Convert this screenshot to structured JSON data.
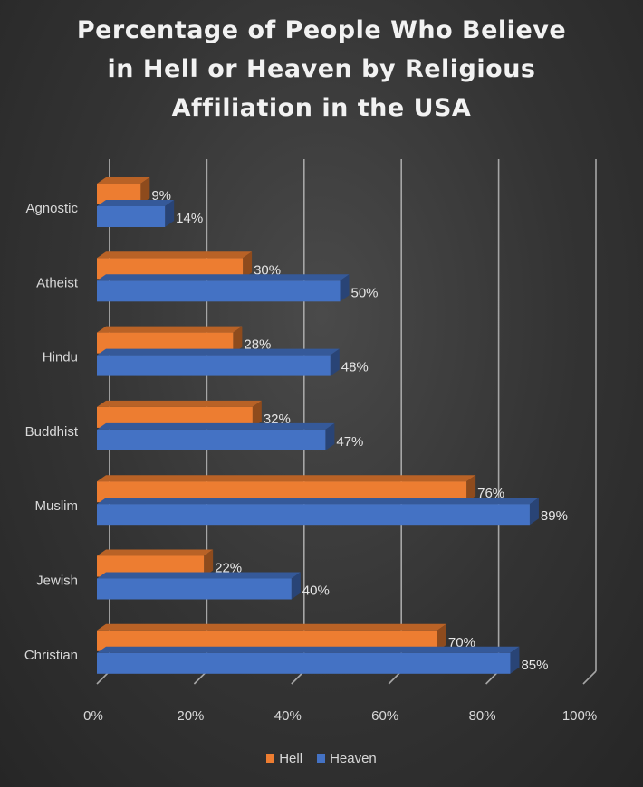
{
  "chart_data": {
    "type": "bar",
    "orientation": "horizontal",
    "title": "Percentage of People Who Believe\nin Hell or Heaven by Religious\nAffiliation in the USA",
    "categories": [
      "Agnostic",
      "Atheist",
      "Hindu",
      "Buddhist",
      "Muslim",
      "Jewish",
      "Christian"
    ],
    "series": [
      {
        "name": "Hell",
        "color": "#ED7D31",
        "values": [
          9,
          30,
          28,
          32,
          76,
          22,
          70
        ],
        "labels": [
          "9%",
          "30%",
          "28%",
          "32%",
          "76%",
          "22%",
          "70%"
        ]
      },
      {
        "name": "Heaven",
        "color": "#4472C4",
        "values": [
          14,
          50,
          48,
          47,
          89,
          40,
          85
        ],
        "labels": [
          "14%",
          "50%",
          "48%",
          "47%",
          "89%",
          "40%",
          "85%"
        ]
      }
    ],
    "xlim": [
      0,
      100
    ],
    "x_ticks": [
      "0%",
      "20%",
      "40%",
      "60%",
      "80%",
      "100%"
    ],
    "grid": true,
    "legend_position": "bottom"
  }
}
